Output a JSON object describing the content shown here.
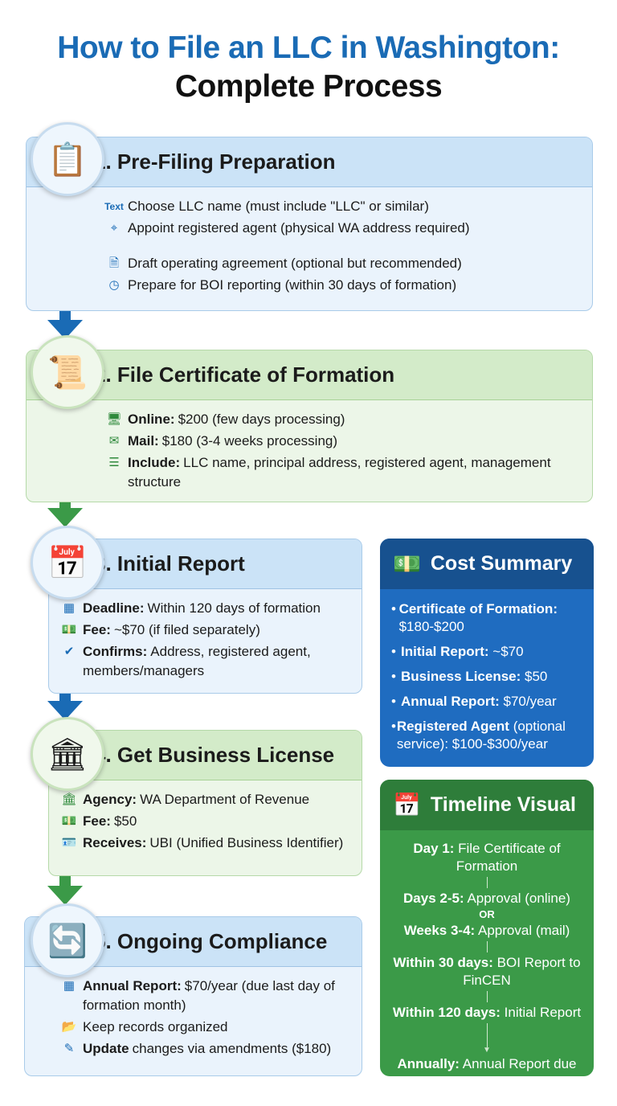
{
  "title": {
    "line1": "How to File an LLC in Washington:",
    "line2": "Complete Process"
  },
  "colors": {
    "blue": "#1a6bb5",
    "green": "#3b9a48"
  },
  "steps": [
    {
      "title": "1. Pre-Filing Preparation",
      "icon": "clipboard-check-icon",
      "items": [
        {
          "icon": "text-icon",
          "icon_text": "Text",
          "bold": "",
          "text": "Choose LLC name (must include \"LLC\" or similar)"
        },
        {
          "icon": "location-pin-icon",
          "bold": "",
          "text": "Appoint registered agent (physical WA address required)"
        },
        {
          "icon": "document-icon",
          "bold": "",
          "text": "Draft operating agreement (optional but recommended)"
        },
        {
          "icon": "clock-icon",
          "bold": "",
          "text": "Prepare for BOI reporting (within 30 days of formation)"
        }
      ]
    },
    {
      "title": "2. File Certificate of Formation",
      "icon": "certificate-icon",
      "items": [
        {
          "icon": "computer-icon",
          "bold": "Online:",
          "text": "$200 (few days processing)"
        },
        {
          "icon": "mail-icon",
          "bold": "Mail:",
          "text": "$180 (3-4 weeks processing)"
        },
        {
          "icon": "list-icon",
          "bold": "Include:",
          "text": "LLC name, principal address, registered agent, management structure"
        }
      ]
    },
    {
      "title": "3. Initial Report",
      "icon": "calendar-check-icon",
      "items": [
        {
          "icon": "calendar-icon",
          "bold": "Deadline:",
          "text": "Within 120 days of formation"
        },
        {
          "icon": "money-icon",
          "bold": "Fee:",
          "text": "~$70 (if filed separately)"
        },
        {
          "icon": "check-circle-icon",
          "bold": "Confirms:",
          "text": "Address, registered agent, members/managers"
        }
      ]
    },
    {
      "title": "4. Get Business License",
      "icon": "government-building-icon",
      "items": [
        {
          "icon": "bank-icon",
          "bold": "Agency:",
          "text": "WA Department of Revenue"
        },
        {
          "icon": "money-icon",
          "bold": "Fee:",
          "text": "$50"
        },
        {
          "icon": "id-card-icon",
          "bold": "Receives:",
          "text": "UBI (Unified Business Identifier)"
        }
      ]
    },
    {
      "title": "5. Ongoing Compliance",
      "icon": "refresh-calendar-icon",
      "items": [
        {
          "icon": "calendar-icon",
          "bold": "Annual Report:",
          "text": "$70/year (due last day of formation month)"
        },
        {
          "icon": "folder-icon",
          "bold": "",
          "text": "Keep records organized"
        },
        {
          "icon": "edit-icon",
          "bold": "Update",
          "text": "changes via amendments ($180)"
        }
      ]
    }
  ],
  "cost_summary": {
    "title": "Cost Summary",
    "icon": "money-stack-icon",
    "items": [
      {
        "bold": "Certificate of Formation:",
        "text": "$180-$200"
      },
      {
        "bold": "Initial Report:",
        "text": "~$70"
      },
      {
        "bold": "Business License:",
        "text": "$50"
      },
      {
        "bold": "Annual Report:",
        "text": "$70/year"
      },
      {
        "bold": "Registered Agent",
        "text": "(optional service): $100-$300/year"
      }
    ]
  },
  "timeline": {
    "title": "Timeline Visual",
    "icon": "calendar-clock-icon",
    "or_label": "OR",
    "items": [
      {
        "bold": "Day 1:",
        "text": "File Certificate of Formation"
      },
      {
        "bold": "Days 2-5:",
        "text": "Approval (online)"
      },
      {
        "bold": "Weeks 3-4:",
        "text": "Approval (mail)"
      },
      {
        "bold": "Within 30 days:",
        "text": "BOI Report to FinCEN"
      },
      {
        "bold": "Within 120 days:",
        "text": "Initial Report"
      },
      {
        "bold": "Annually:",
        "text": "Annual Report due"
      }
    ]
  }
}
